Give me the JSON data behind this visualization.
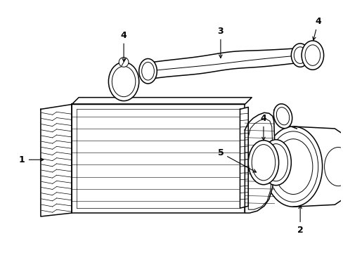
{
  "bg_color": "#ffffff",
  "line_color": "#000000",
  "lw": 1.1,
  "tlw": 0.7,
  "fig_width": 4.89,
  "fig_height": 3.6,
  "dpi": 100
}
